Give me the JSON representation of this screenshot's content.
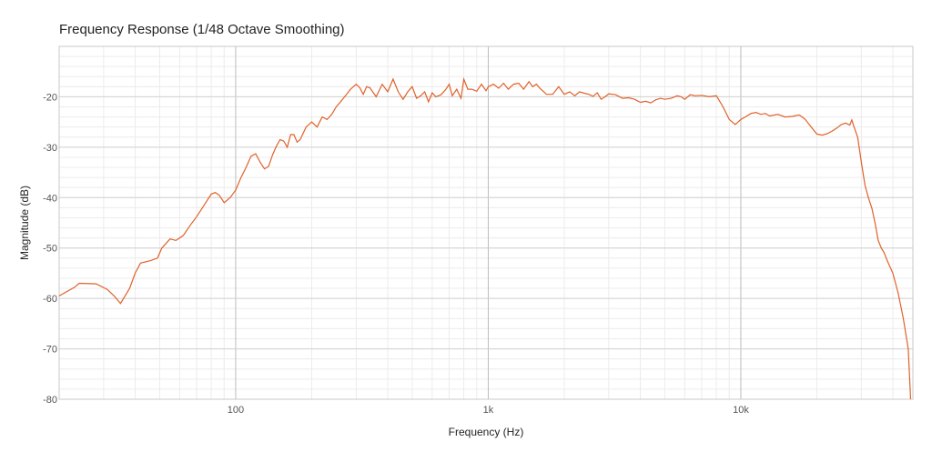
{
  "chart_data": {
    "type": "line",
    "title": "Frequency Response (1/48 Octave Smoothing)",
    "xlabel": "Frequency (Hz)",
    "ylabel": "Magnitude (dB)",
    "xscale": "log",
    "xlim": [
      20,
      48000
    ],
    "ylim": [
      -80,
      -10
    ],
    "x_ticks": [
      {
        "value": 100,
        "label": "100"
      },
      {
        "value": 1000,
        "label": "1k"
      },
      {
        "value": 10000,
        "label": "10k"
      }
    ],
    "y_ticks": [
      {
        "value": -20,
        "label": "-20"
      },
      {
        "value": -30,
        "label": "-30"
      },
      {
        "value": -40,
        "label": "-40"
      },
      {
        "value": -50,
        "label": "-50"
      },
      {
        "value": -60,
        "label": "-60"
      },
      {
        "value": -70,
        "label": "-70"
      },
      {
        "value": -80,
        "label": "-80"
      }
    ],
    "grid": true,
    "line_color": "#e0612a",
    "series": [
      {
        "x": [
          20,
          23,
          24,
          28,
          31,
          33,
          35,
          38,
          40,
          42,
          46,
          49,
          51,
          55,
          58,
          62,
          66,
          70,
          75,
          80,
          83,
          86,
          90,
          95,
          100,
          105,
          110,
          115,
          120,
          125,
          130,
          135,
          140,
          145,
          150,
          155,
          160,
          165,
          170,
          175,
          180,
          190,
          200,
          210,
          220,
          230,
          240,
          250,
          260,
          270,
          285,
          300,
          310,
          320,
          330,
          340,
          360,
          380,
          400,
          420,
          440,
          460,
          480,
          500,
          520,
          540,
          560,
          580,
          600,
          620,
          650,
          680,
          700,
          720,
          750,
          780,
          800,
          830,
          860,
          900,
          940,
          980,
          1000,
          1050,
          1100,
          1150,
          1200,
          1260,
          1320,
          1380,
          1450,
          1500,
          1550,
          1600,
          1700,
          1800,
          1900,
          2000,
          2100,
          2200,
          2300,
          2400,
          2500,
          2600,
          2700,
          2800,
          2900,
          3000,
          3200,
          3400,
          3600,
          3800,
          4000,
          4200,
          4400,
          4600,
          4800,
          5000,
          5300,
          5600,
          5800,
          6000,
          6300,
          6600,
          7000,
          7500,
          8000,
          8500,
          9000,
          9500,
          10000,
          10500,
          11000,
          11500,
          12000,
          12500,
          13000,
          14000,
          15000,
          16000,
          17000,
          17500,
          18000,
          19000,
          20000,
          21000,
          22000,
          23000,
          24000,
          25000,
          26000,
          27000,
          27500,
          28000,
          29000,
          30000,
          31000,
          32000,
          33000,
          34000,
          35000,
          36000,
          37000,
          38000,
          40000,
          42000,
          44000,
          46000,
          47000
        ],
        "y": [
          -59.5,
          -57.8,
          -57,
          -57.1,
          -58.2,
          -59.5,
          -61,
          -58,
          -55,
          -53,
          -52.5,
          -52,
          -50,
          -48.2,
          -48.5,
          -47.5,
          -45.5,
          -43.8,
          -41.5,
          -39.3,
          -39,
          -39.5,
          -41,
          -40,
          -38.5,
          -36,
          -34,
          -31.8,
          -31.3,
          -33,
          -34.3,
          -33.8,
          -31.5,
          -29.8,
          -28.5,
          -28.8,
          -30,
          -27.5,
          -27.5,
          -29,
          -28.5,
          -26,
          -25,
          -26,
          -24,
          -24.5,
          -23.5,
          -22,
          -21,
          -20,
          -18.5,
          -17.5,
          -18.2,
          -19.5,
          -18,
          -18.2,
          -20,
          -17.5,
          -19,
          -16.5,
          -19,
          -20.5,
          -19,
          -18,
          -20.3,
          -19.8,
          -19,
          -21,
          -19.2,
          -20,
          -19.6,
          -18.5,
          -17.5,
          -19.8,
          -18.5,
          -20.3,
          -16.5,
          -18.5,
          -18.5,
          -18.9,
          -17.5,
          -18.8,
          -18,
          -17.5,
          -18.3,
          -17.3,
          -18.5,
          -17.5,
          -17.3,
          -18.5,
          -17,
          -18,
          -17.5,
          -18.3,
          -19.5,
          -19.5,
          -18,
          -19.5,
          -19,
          -19.8,
          -19,
          -19.3,
          -19.5,
          -19.9,
          -19.2,
          -20.5,
          -20,
          -19.4,
          -19.6,
          -20.3,
          -20.2,
          -20.5,
          -21.1,
          -20.9,
          -21.2,
          -20.6,
          -20.3,
          -20.5,
          -20.3,
          -19.8,
          -20,
          -20.5,
          -19.6,
          -19.8,
          -19.7,
          -20,
          -19.8,
          -22,
          -24.5,
          -25.5,
          -24.5,
          -23.9,
          -23.3,
          -23.1,
          -23.5,
          -23.3,
          -23.8,
          -23.5,
          -24,
          -23.9,
          -23.6,
          -24,
          -24.5,
          -26,
          -27.4,
          -27.6,
          -27.3,
          -26.8,
          -26.2,
          -25.5,
          -25.2,
          -25.6,
          -24.6,
          -25.8,
          -28,
          -33,
          -37.5,
          -40,
          -42,
          -45,
          -48.5,
          -50,
          -51,
          -52.5,
          -55,
          -59,
          -64,
          -70,
          -80
        ]
      }
    ]
  }
}
